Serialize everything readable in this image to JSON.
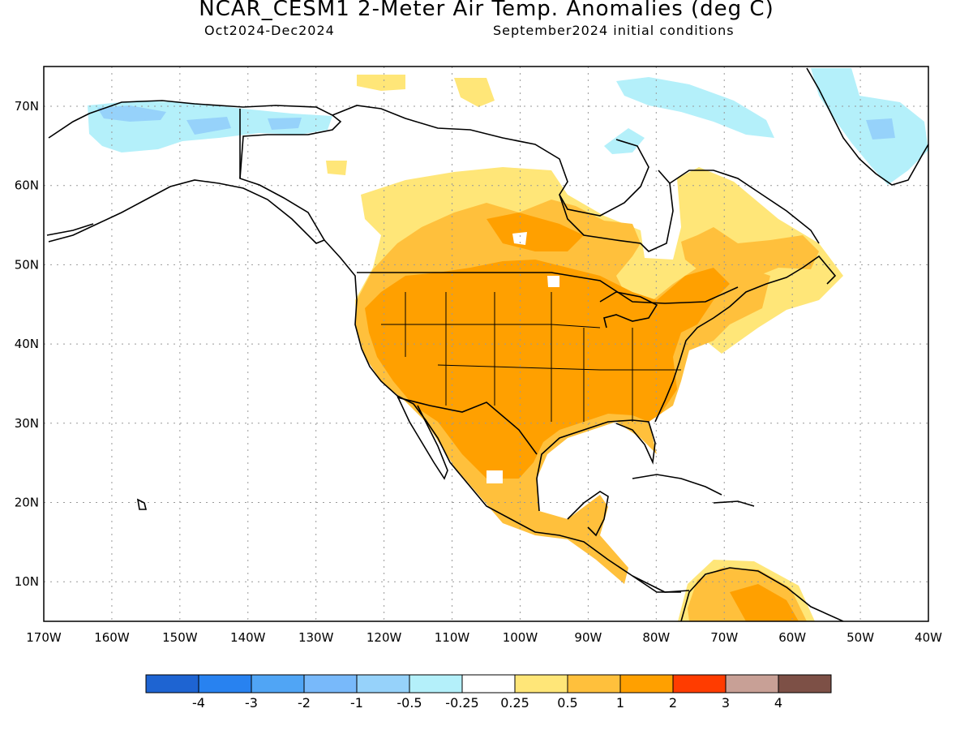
{
  "title": "NCAR_CESM1 2-Meter Air Temp. Anomalies (deg C)",
  "subtitle_left": "Oct2024-Dec2024",
  "subtitle_right": "September2024 initial conditions",
  "lat_labels": [
    "70N",
    "60N",
    "50N",
    "40N",
    "30N",
    "20N",
    "10N"
  ],
  "lon_labels": [
    "170W",
    "160W",
    "150W",
    "140W",
    "130W",
    "120W",
    "110W",
    "100W",
    "90W",
    "80W",
    "70W",
    "60W",
    "50W",
    "40W"
  ],
  "colorbar": {
    "colors": [
      "#1e64d2",
      "#2882f0",
      "#50a5f5",
      "#78b9fa",
      "#96d2fa",
      "#b4f0fa",
      "#ffffff",
      "#ffe678",
      "#ffc03c",
      "#ffa000",
      "#ff3c00",
      "#c8a096",
      "#7d5046"
    ],
    "labels": [
      "-4",
      "-3",
      "-2",
      "-1",
      "-0.5",
      "-0.25",
      "0.25",
      "0.5",
      "1",
      "2",
      "3",
      "4"
    ]
  },
  "colors": {
    "land_outline": "#000000",
    "grid": "#999999"
  }
}
